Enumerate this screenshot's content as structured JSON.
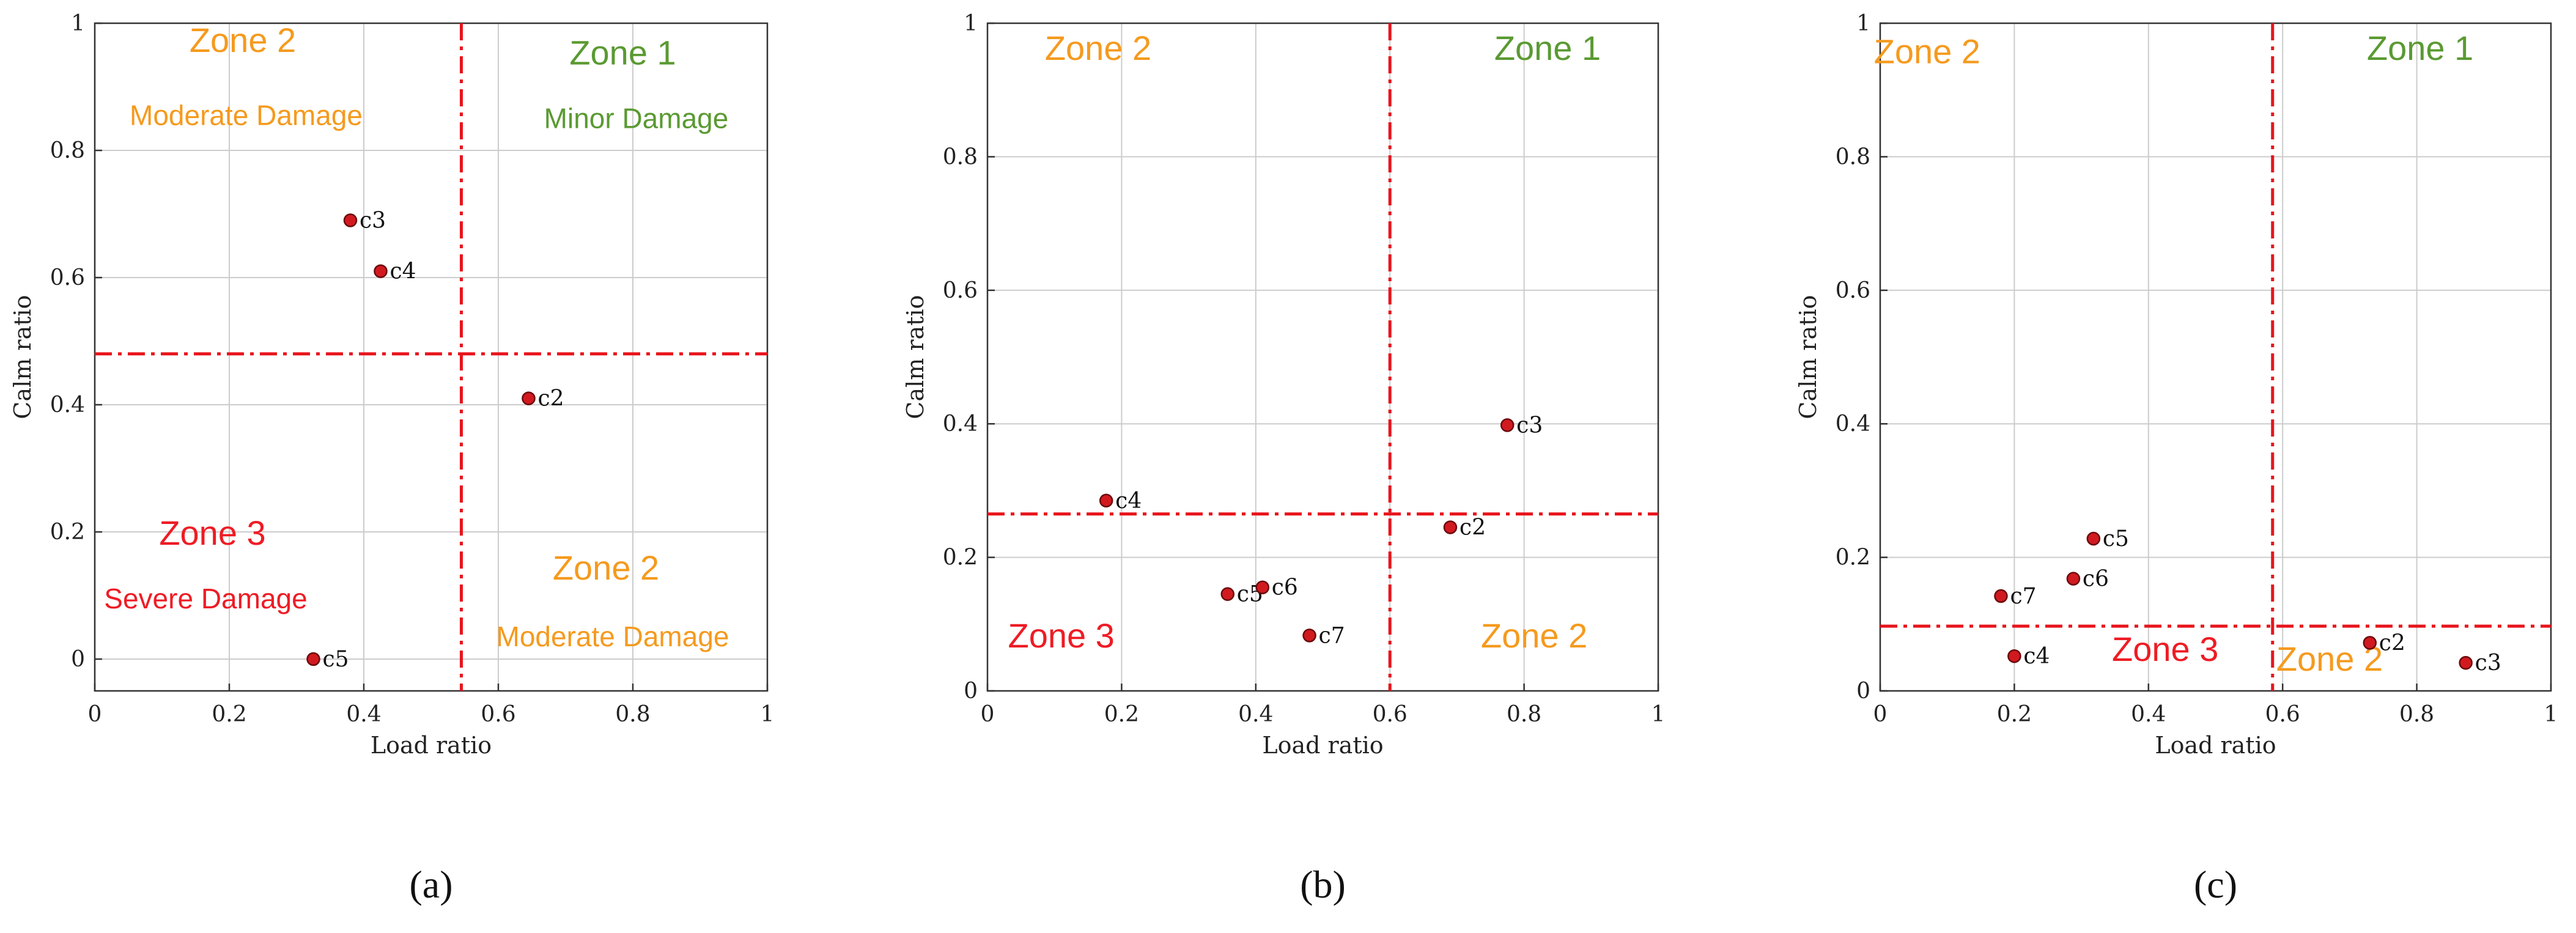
{
  "colors": {
    "zone1": "#5a9a32",
    "zone2": "#f59a1e",
    "zone3": "#ee1c25",
    "threshold": "#e8141c",
    "point_fill": "#d11a1f",
    "point_edge": "#6b0a0d",
    "grid": "#cccccc",
    "axis": "#333333"
  },
  "chart_data": [
    {
      "type": "scatter",
      "caption": "(a)",
      "xlabel": "Load ratio",
      "ylabel": "Calm ratio",
      "xlim": [
        0,
        1
      ],
      "ylim": [
        -0.05,
        1
      ],
      "xticks": [
        0,
        0.2,
        0.4,
        0.6,
        0.8,
        1
      ],
      "xtick_labels": [
        "0",
        "0.2",
        "0.4",
        "0.6",
        "0.8",
        "1"
      ],
      "yticks": [
        0,
        0.2,
        0.4,
        0.6,
        0.8,
        1
      ],
      "ytick_labels": [
        "0",
        "0.2",
        "0.4",
        "0.6",
        "0.8",
        "1"
      ],
      "grid": true,
      "thresholds": {
        "x": 0.545,
        "y": 0.48
      },
      "points": [
        {
          "label": "c3",
          "x": 0.38,
          "y": 0.69
        },
        {
          "label": "c4",
          "x": 0.425,
          "y": 0.61
        },
        {
          "label": "c2",
          "x": 0.645,
          "y": 0.41
        },
        {
          "label": "c5",
          "x": 0.325,
          "y": 0.0
        }
      ],
      "annotations": [
        {
          "text": "Zone 2",
          "x": 0.22,
          "y": 0.955,
          "zone": "zone2",
          "big": true
        },
        {
          "text": "Moderate Damage",
          "x": 0.225,
          "y": 0.84,
          "zone": "zone2",
          "big": false
        },
        {
          "text": "Zone 1",
          "x": 0.785,
          "y": 0.935,
          "zone": "zone1",
          "big": true
        },
        {
          "text": "Minor Damage",
          "x": 0.805,
          "y": 0.835,
          "zone": "zone1",
          "big": false
        },
        {
          "text": "Zone 3",
          "x": 0.175,
          "y": 0.18,
          "zone": "zone3",
          "big": true
        },
        {
          "text": "Severe Damage",
          "x": 0.165,
          "y": 0.08,
          "zone": "zone3",
          "big": false
        },
        {
          "text": "Zone 2",
          "x": 0.76,
          "y": 0.125,
          "zone": "zone2",
          "big": true
        },
        {
          "text": "Moderate Damage",
          "x": 0.77,
          "y": 0.02,
          "zone": "zone2",
          "big": false
        }
      ]
    },
    {
      "type": "scatter",
      "caption": "(b)",
      "xlabel": "Load ratio",
      "ylabel": "Calm ratio",
      "xlim": [
        0,
        1
      ],
      "ylim": [
        0,
        1
      ],
      "xticks": [
        0,
        0.2,
        0.4,
        0.6,
        0.8,
        1
      ],
      "xtick_labels": [
        "0",
        "0.2",
        "0.4",
        "0.6",
        "0.8",
        "1"
      ],
      "yticks": [
        0,
        0.2,
        0.4,
        0.6,
        0.8,
        1
      ],
      "ytick_labels": [
        "0",
        "0.2",
        "0.4",
        "0.6",
        "0.8",
        "1"
      ],
      "grid": true,
      "thresholds": {
        "x": 0.6,
        "y": 0.265
      },
      "points": [
        {
          "label": "c3",
          "x": 0.775,
          "y": 0.398
        },
        {
          "label": "c4",
          "x": 0.177,
          "y": 0.285
        },
        {
          "label": "c2",
          "x": 0.69,
          "y": 0.245
        },
        {
          "label": "c5",
          "x": 0.358,
          "y": 0.145
        },
        {
          "label": "c6",
          "x": 0.41,
          "y": 0.155
        },
        {
          "label": "c7",
          "x": 0.48,
          "y": 0.083
        }
      ],
      "annotations": [
        {
          "text": "Zone 2",
          "x": 0.165,
          "y": 0.945,
          "zone": "zone2",
          "big": true
        },
        {
          "text": "Zone 1",
          "x": 0.835,
          "y": 0.945,
          "zone": "zone1",
          "big": true
        },
        {
          "text": "Zone 3",
          "x": 0.11,
          "y": 0.065,
          "zone": "zone3",
          "big": true
        },
        {
          "text": "Zone 2",
          "x": 0.815,
          "y": 0.065,
          "zone": "zone2",
          "big": true
        }
      ]
    },
    {
      "type": "scatter",
      "caption": "(c)",
      "xlabel": "Load ratio",
      "ylabel": "Calm ratio",
      "xlim": [
        0,
        1
      ],
      "ylim": [
        0,
        1
      ],
      "xticks": [
        0,
        0.2,
        0.4,
        0.6,
        0.8,
        1
      ],
      "xtick_labels": [
        "0",
        "0.2",
        "0.4",
        "0.6",
        "0.8",
        "1"
      ],
      "yticks": [
        0,
        0.2,
        0.4,
        0.6,
        0.8,
        1
      ],
      "ytick_labels": [
        "0",
        "0.2",
        "0.4",
        "0.6",
        "0.8",
        "1"
      ],
      "grid": true,
      "thresholds": {
        "x": 0.585,
        "y": 0.097
      },
      "points": [
        {
          "label": "c5",
          "x": 0.318,
          "y": 0.228
        },
        {
          "label": "c6",
          "x": 0.288,
          "y": 0.168
        },
        {
          "label": "c7",
          "x": 0.18,
          "y": 0.142
        },
        {
          "label": "c4",
          "x": 0.2,
          "y": 0.052
        },
        {
          "label": "c2",
          "x": 0.73,
          "y": 0.072
        },
        {
          "label": "c3",
          "x": 0.873,
          "y": 0.042
        }
      ],
      "annotations": [
        {
          "text": "Zone 2",
          "x": 0.07,
          "y": 0.94,
          "zone": "zone2",
          "big": true
        },
        {
          "text": "Zone 1",
          "x": 0.805,
          "y": 0.945,
          "zone": "zone1",
          "big": true
        },
        {
          "text": "Zone 3",
          "x": 0.425,
          "y": 0.045,
          "zone": "zone3",
          "big": true
        },
        {
          "text": "Zone 2",
          "x": 0.67,
          "y": 0.03,
          "zone": "zone2",
          "big": true
        }
      ]
    }
  ]
}
